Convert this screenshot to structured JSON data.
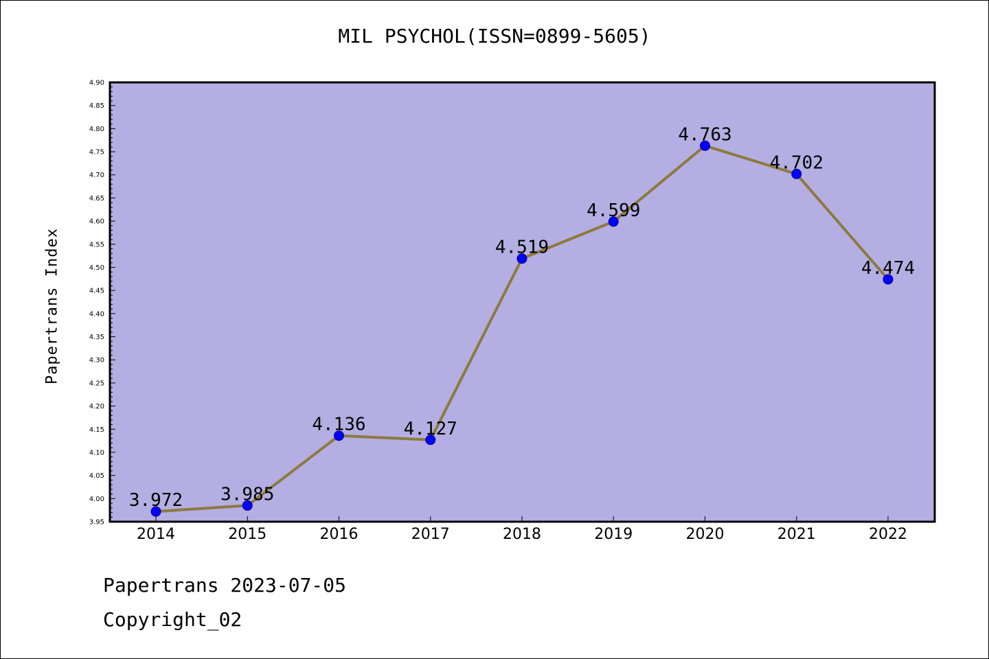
{
  "chart_data": {
    "type": "line",
    "title": "MIL PSYCHOL(ISSN=0899-5605)",
    "xlabel": "",
    "ylabel": "Papertrans Index",
    "categories": [
      "2014",
      "2015",
      "2016",
      "2017",
      "2018",
      "2019",
      "2020",
      "2021",
      "2022"
    ],
    "series": [
      {
        "values": [
          3.972,
          3.985,
          4.136,
          4.127,
          4.519,
          4.599,
          4.763,
          4.702,
          4.474
        ],
        "labels": [
          "3.972",
          "3.985",
          "4.136",
          "4.127",
          "4.519",
          "4.599",
          "4.763",
          "4.702",
          "4.474"
        ]
      }
    ],
    "ylim": [
      3.95,
      4.9
    ],
    "yticks": [
      "3.95",
      "4.00",
      "4.05",
      "4.10",
      "4.15",
      "4.20",
      "4.25",
      "4.30",
      "4.35",
      "4.40",
      "4.45",
      "4.50",
      "4.55",
      "4.60",
      "4.65",
      "4.70",
      "4.75",
      "4.80",
      "4.85",
      "4.90"
    ],
    "grid": false,
    "legend": "none",
    "colors": {
      "plot_background": "#b5aee2",
      "line": "#8c7a3e",
      "marker": "#0000ff"
    }
  },
  "footer": {
    "line1": "Papertrans 2023-07-05",
    "line2": "Copyright_02"
  }
}
